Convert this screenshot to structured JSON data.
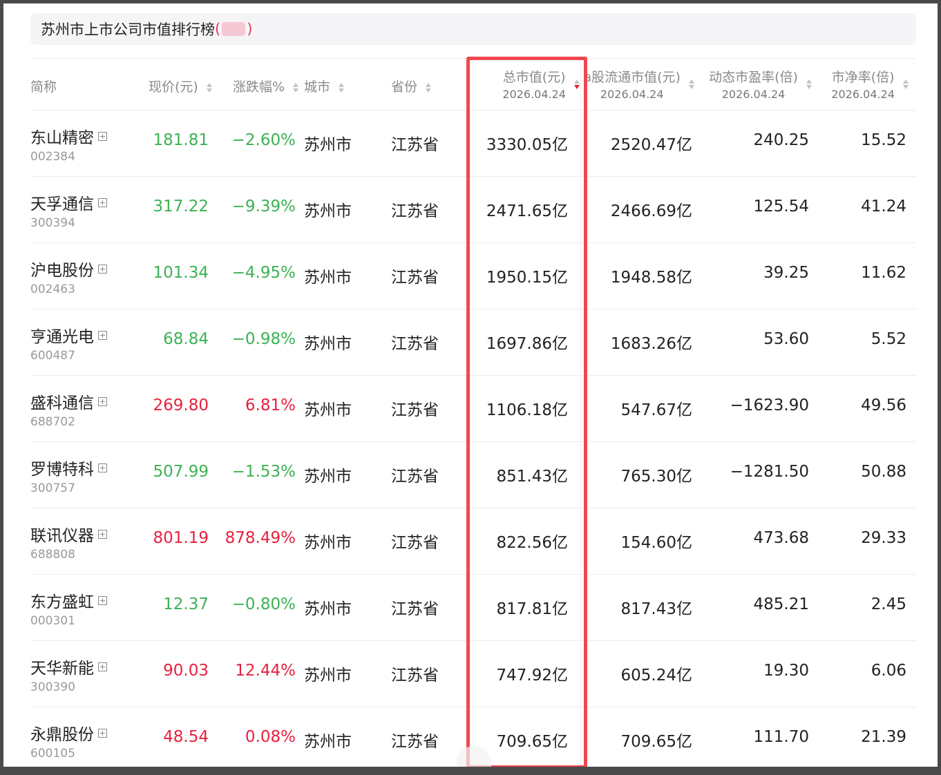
{
  "page": {
    "title": "苏州市上市公司市值排行榜",
    "title_paren_open": "(",
    "title_paren_close": ")"
  },
  "colors": {
    "up": "#e8203e",
    "down": "#3cb153",
    "highlight_border": "#f0474f",
    "sort_active": "#e8202e"
  },
  "columns": [
    {
      "key": "name",
      "label": "简称",
      "sub": ""
    },
    {
      "key": "price",
      "label": "现价(元)",
      "sub": ""
    },
    {
      "key": "change",
      "label": "涨跌幅%",
      "sub": ""
    },
    {
      "key": "city",
      "label": "城市",
      "sub": ""
    },
    {
      "key": "province",
      "label": "省份",
      "sub": ""
    },
    {
      "key": "mcap",
      "label": "总市值(元)",
      "sub": "2026.04.24"
    },
    {
      "key": "float",
      "label": "a股流通市值(元)",
      "sub": "2026.04.24"
    },
    {
      "key": "pe",
      "label": "动态市盈率(倍)",
      "sub": "2026.04.24"
    },
    {
      "key": "pb",
      "label": "市净率(倍)",
      "sub": "2026.04.24"
    }
  ],
  "rows": [
    {
      "name": "东山精密",
      "code": "002384",
      "price": "181.81",
      "change": "−2.60%",
      "dir": "down",
      "city": "苏州市",
      "province": "江苏省",
      "mcap": "3330.05亿",
      "float": "2520.47亿",
      "pe": "240.25",
      "pb": "15.52"
    },
    {
      "name": "天孚通信",
      "code": "300394",
      "price": "317.22",
      "change": "−9.39%",
      "dir": "down",
      "city": "苏州市",
      "province": "江苏省",
      "mcap": "2471.65亿",
      "float": "2466.69亿",
      "pe": "125.54",
      "pb": "41.24"
    },
    {
      "name": "沪电股份",
      "code": "002463",
      "price": "101.34",
      "change": "−4.95%",
      "dir": "down",
      "city": "苏州市",
      "province": "江苏省",
      "mcap": "1950.15亿",
      "float": "1948.58亿",
      "pe": "39.25",
      "pb": "11.62"
    },
    {
      "name": "亨通光电",
      "code": "600487",
      "price": "68.84",
      "change": "−0.98%",
      "dir": "down",
      "city": "苏州市",
      "province": "江苏省",
      "mcap": "1697.86亿",
      "float": "1683.26亿",
      "pe": "53.60",
      "pb": "5.52"
    },
    {
      "name": "盛科通信",
      "code": "688702",
      "price": "269.80",
      "change": "6.81%",
      "dir": "up",
      "city": "苏州市",
      "province": "江苏省",
      "mcap": "1106.18亿",
      "float": "547.67亿",
      "pe": "−1623.90",
      "pb": "49.56"
    },
    {
      "name": "罗博特科",
      "code": "300757",
      "price": "507.99",
      "change": "−1.53%",
      "dir": "down",
      "city": "苏州市",
      "province": "江苏省",
      "mcap": "851.43亿",
      "float": "765.30亿",
      "pe": "−1281.50",
      "pb": "50.88"
    },
    {
      "name": "联讯仪器",
      "code": "688808",
      "price": "801.19",
      "change": "878.49%",
      "dir": "up",
      "city": "苏州市",
      "province": "江苏省",
      "mcap": "822.56亿",
      "float": "154.60亿",
      "pe": "473.68",
      "pb": "29.33"
    },
    {
      "name": "东方盛虹",
      "code": "000301",
      "price": "12.37",
      "change": "−0.80%",
      "dir": "down",
      "city": "苏州市",
      "province": "江苏省",
      "mcap": "817.81亿",
      "float": "817.43亿",
      "pe": "485.21",
      "pb": "2.45"
    },
    {
      "name": "天华新能",
      "code": "300390",
      "price": "90.03",
      "change": "12.44%",
      "dir": "up",
      "city": "苏州市",
      "province": "江苏省",
      "mcap": "747.92亿",
      "float": "605.24亿",
      "pe": "19.30",
      "pb": "6.06"
    },
    {
      "name": "永鼎股份",
      "code": "600105",
      "price": "48.54",
      "change": "0.08%",
      "dir": "up",
      "city": "苏州市",
      "province": "江苏省",
      "mcap": "709.65亿",
      "float": "709.65亿",
      "pe": "111.70",
      "pb": "21.39"
    }
  ]
}
